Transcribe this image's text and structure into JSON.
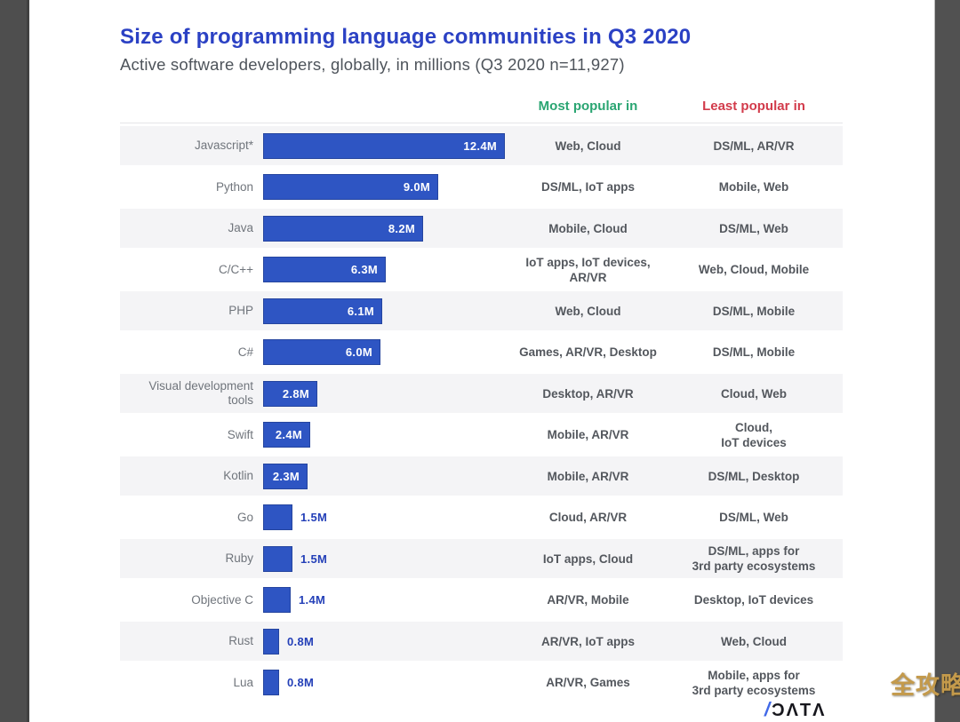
{
  "chart_data": {
    "type": "bar",
    "orientation": "horizontal",
    "title": "Size of programming language communities in Q3 2020",
    "subtitle": "Active software developers, globally, in millions (Q3 2020 n=11,927)",
    "columns": {
      "most": "Most popular in",
      "least": "Least popular in"
    },
    "unit": "millions of developers",
    "xlim": [
      0,
      12.4
    ],
    "bar_color": "#2e55c3",
    "categories": [
      "Javascript*",
      "Python",
      "Java",
      "C/C++",
      "PHP",
      "C#",
      "Visual development tools",
      "Swift",
      "Kotlin",
      "Go",
      "Ruby",
      "Objective C",
      "Rust",
      "Lua"
    ],
    "values": [
      12.4,
      9.0,
      8.2,
      6.3,
      6.1,
      6.0,
      2.8,
      2.4,
      2.3,
      1.5,
      1.5,
      1.4,
      0.8,
      0.8
    ],
    "value_labels": [
      "12.4M",
      "9.0M",
      "8.2M",
      "6.3M",
      "6.1M",
      "6.0M",
      "2.8M",
      "2.4M",
      "2.3M",
      "1.5M",
      "1.5M",
      "1.4M",
      "0.8M",
      "0.8M"
    ],
    "most_popular_in": [
      "Web, Cloud",
      "DS/ML, IoT apps",
      "Mobile, Cloud",
      "IoT apps, IoT devices,\nAR/VR",
      "Web, Cloud",
      "Games, AR/VR, Desktop",
      "Desktop, AR/VR",
      "Mobile, AR/VR",
      "Mobile, AR/VR",
      "Cloud, AR/VR",
      "IoT apps, Cloud",
      "AR/VR, Mobile",
      "AR/VR, IoT apps",
      "AR/VR, Games"
    ],
    "least_popular_in": [
      "DS/ML, AR/VR",
      "Mobile, Web",
      "DS/ML, Web",
      "Web, Cloud, Mobile",
      "DS/ML, Mobile",
      "DS/ML, Mobile",
      "Cloud, Web",
      "Cloud,\nIoT devices",
      "DS/ML, Desktop",
      "DS/ML, Web",
      "DS/ML, apps for\n3rd party ecosystems",
      "Desktop, IoT devices",
      "Web, Cloud",
      "Mobile, apps for\n3rd party ecosystems"
    ]
  },
  "footer": {
    "logo_slash": "/",
    "logo_wordmark": "ƆΛTΛ"
  },
  "watermark": {
    "text": "全攻略",
    "color": "#c49a4b"
  },
  "colors": {
    "title": "#2b41c4",
    "subtitle": "#4e545b",
    "bar": "#2e55c3",
    "most_header": "#2aa572",
    "least_header": "#d23b4b",
    "row_stripe": "#f4f4f6",
    "frame": "#4e4e4e",
    "value_outside": "#2440b8"
  }
}
